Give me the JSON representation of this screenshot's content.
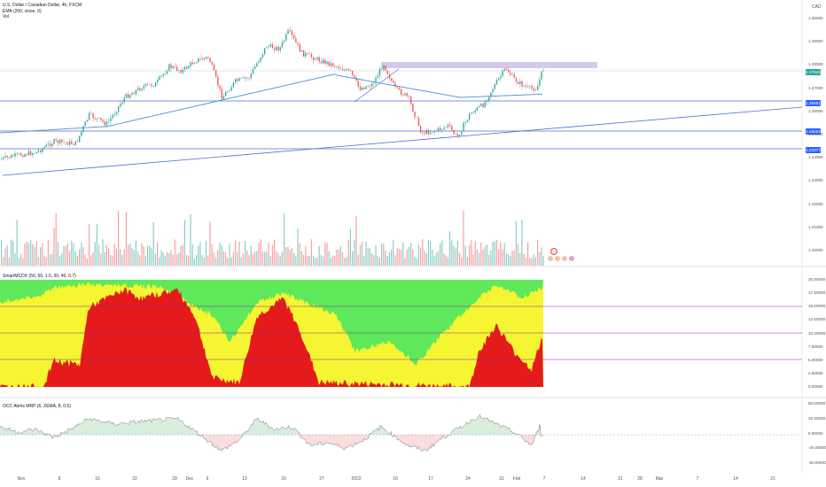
{
  "main_pane": {
    "symbol_line": "U.S. Dollar / Canadian Dollar, 4h, FXCM",
    "ema_line": "EMA (200, close, 0)",
    "vol_line": "Vol",
    "currency": "CAD",
    "price_axis": [
      "1.30000",
      "1.29000",
      "1.28000",
      "1.27000",
      "1.26000",
      "1.25000",
      "1.24000",
      "1.23000",
      "1.22000",
      "1.21000",
      "1.20000"
    ],
    "tags": [
      {
        "label": "1.27645",
        "color": "#26a69a"
      },
      {
        "label": "1.26491",
        "color": "#2962ff"
      },
      {
        "label": "1.25022",
        "color": "#2962ff"
      },
      {
        "label": "1.24377",
        "color": "#2962ff"
      }
    ]
  },
  "smart_pane": {
    "title": "SmartMCDX (50, 50, 1.5, 30, 40, 0.7)",
    "axis": [
      "20.00000",
      "17.50000",
      "15.00000",
      "12.50000",
      "10.00000",
      "7.50000",
      "5.00000",
      "2.50000",
      "0.00000"
    ]
  },
  "occ_pane": {
    "title": "OCC Alerts MRP (6, ZEMA, 8, 0.5)",
    "axis": [
      "50.00000",
      "25.00000",
      "0.00000",
      "-25.00000",
      "-50.00000"
    ]
  },
  "time_axis": [
    "Nov",
    "8",
    "15",
    "22",
    "29",
    "Dec",
    "6",
    "13",
    "20",
    "27",
    "2022",
    "10",
    "17",
    "24",
    "31",
    "Feb",
    "7",
    "14",
    "21",
    "28",
    "Mar",
    "7",
    "14",
    "21"
  ],
  "colors": {
    "bull": "#26a69a",
    "bear": "#ef5350",
    "ema": "#4a90d9",
    "line": "#4b6fd6",
    "zone": "#b39ddb",
    "smart_green": "#5ee85a",
    "smart_yellow": "#f5f531",
    "smart_red": "#e51b1b",
    "occ_green": "#2e9e46",
    "occ_red": "#e04848"
  }
}
